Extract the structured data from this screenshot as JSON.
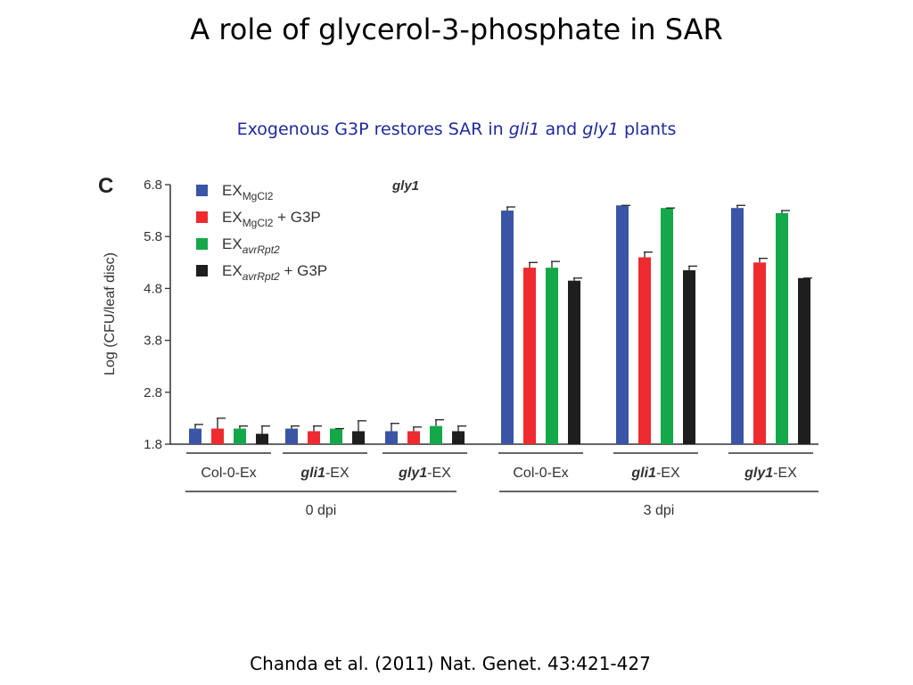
{
  "slide": {
    "title": "A role of glycerol-3-phosphate in SAR",
    "subtitle_parts": [
      "Exogenous G3P restores SAR in ",
      "gli1",
      " and ",
      "gly1",
      " plants"
    ],
    "citation": "Chanda et al. (2011) Nat. Genet. 43:421-427"
  },
  "chart_data": {
    "type": "bar",
    "panel_label": "C",
    "title": "gly1",
    "ylabel": "Log (CFU/leaf disc)",
    "ylim": [
      1.8,
      6.8
    ],
    "yticks": [
      6.8,
      5.8,
      4.8,
      3.8,
      2.8,
      1.8
    ],
    "grid": false,
    "legend_position": "top-left",
    "categories": [
      "Col-0-Ex",
      "gli1-EX",
      "gly1-EX",
      "Col-0-Ex",
      "gli1-EX",
      "gly1-EX"
    ],
    "category_parts": [
      {
        "italic": "",
        "plain": "Col-0-Ex"
      },
      {
        "italic": "gli1",
        "plain": "-EX"
      },
      {
        "italic": "gly1",
        "plain": "-EX"
      },
      {
        "italic": "",
        "plain": "Col-0-Ex"
      },
      {
        "italic": "gli1",
        "plain": "-EX"
      },
      {
        "italic": "gly1",
        "plain": "-EX"
      }
    ],
    "groups": [
      {
        "label": "0 dpi",
        "categories": [
          0,
          1,
          2
        ]
      },
      {
        "label": "3 dpi",
        "categories": [
          3,
          4,
          5
        ]
      }
    ],
    "series": [
      {
        "name": "EX MgCl2",
        "legend_base": "EX",
        "legend_sub": "MgCl2",
        "legend_sub_italic": false,
        "legend_suffix": "",
        "color": "#3a55a5",
        "values": [
          2.1,
          2.1,
          2.05,
          6.3,
          6.4,
          6.35
        ],
        "errors": [
          0.08,
          0.05,
          0.15,
          0.07,
          0.0,
          0.05
        ]
      },
      {
        "name": "EX MgCl2 + G3P",
        "legend_base": "EX",
        "legend_sub": "MgCl2",
        "legend_sub_italic": false,
        "legend_suffix": " + G3P",
        "color": "#ee2b2f",
        "values": [
          2.1,
          2.05,
          2.05,
          5.2,
          5.4,
          5.3
        ],
        "errors": [
          0.2,
          0.1,
          0.08,
          0.1,
          0.1,
          0.08
        ]
      },
      {
        "name": "EX avrRpt2",
        "legend_base": "EX",
        "legend_sub": "avrRpt2",
        "legend_sub_italic": true,
        "legend_suffix": "",
        "color": "#15a84a",
        "values": [
          2.1,
          2.1,
          2.15,
          5.2,
          6.35,
          6.25
        ],
        "errors": [
          0.05,
          0.0,
          0.12,
          0.12,
          0.0,
          0.05
        ]
      },
      {
        "name": "EX avrRpt2 + G3P",
        "legend_base": "EX",
        "legend_sub": "avrRpt2",
        "legend_sub_italic": true,
        "legend_suffix": " + G3P",
        "color": "#1e1e1e",
        "values": [
          2.0,
          2.05,
          2.05,
          4.95,
          5.15,
          5.0
        ],
        "errors": [
          0.15,
          0.2,
          0.1,
          0.05,
          0.08,
          0.0
        ]
      }
    ]
  }
}
